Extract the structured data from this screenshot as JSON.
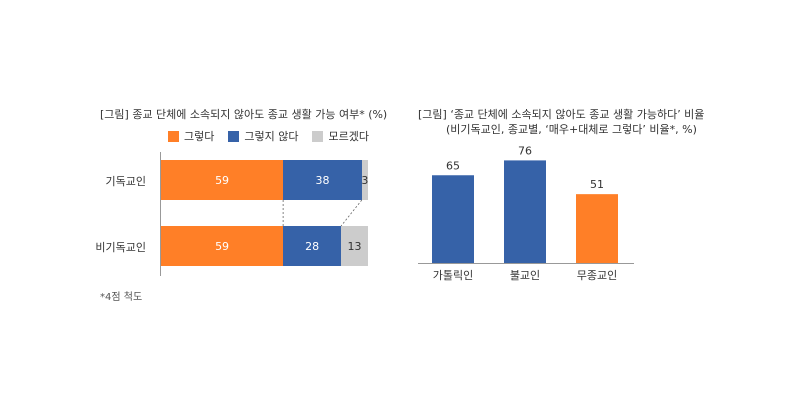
{
  "colors": {
    "orange": "#ff7f27",
    "blue": "#3662a8",
    "gray": "#cccccc"
  },
  "chart_data": [
    {
      "type": "bar",
      "orientation": "horizontal-stacked",
      "title": "[그림] 종교 단체에 소속되지 않아도 종교 생활 가능 여부* (%)",
      "categories": [
        "기독교인",
        "비기독교인"
      ],
      "series": [
        {
          "name": "그렇다",
          "values": [
            59,
            59
          ]
        },
        {
          "name": "그렇지 않다",
          "values": [
            38,
            28
          ]
        },
        {
          "name": "모르겠다",
          "values": [
            3,
            13
          ]
        }
      ],
      "legend": "top",
      "note": "*4점 척도",
      "xlim": [
        0,
        100
      ]
    },
    {
      "type": "bar",
      "orientation": "vertical",
      "title": "[그림] ‘종교 단체에 소속되지 않아도 종교 생활 가능하다’ 비율",
      "subtitle": "(비기독교인, 종교별, ‘매우+대체로 그렇다’ 비율*, %)",
      "categories": [
        "가톨릭인",
        "불교인",
        "무종교인"
      ],
      "values": [
        65,
        76,
        51
      ],
      "ylim": [
        0,
        80
      ]
    }
  ]
}
